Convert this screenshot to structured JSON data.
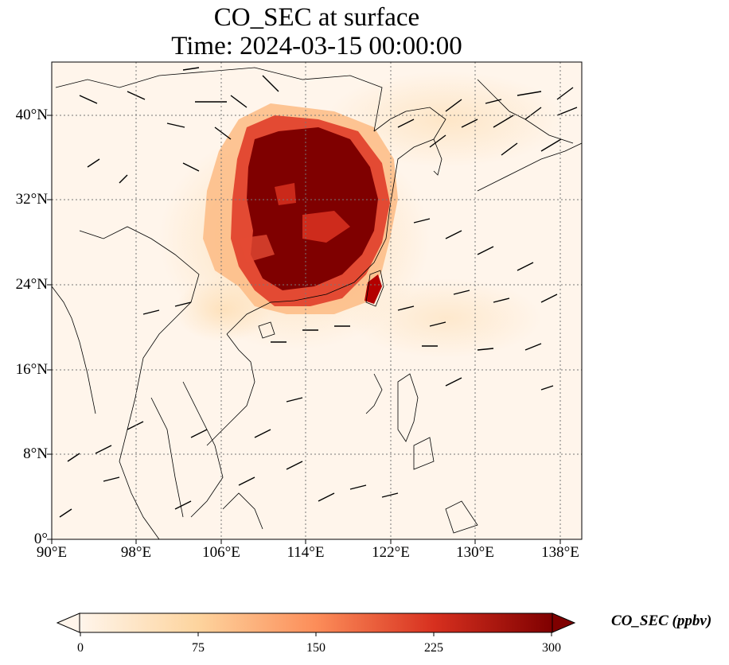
{
  "title_line1": "CO_SEC at surface",
  "title_line2": "Time: 2024-03-15 00:00:00",
  "map": {
    "lon_ticks": [
      "90°E",
      "98°E",
      "106°E",
      "114°E",
      "122°E",
      "130°E",
      "138°E"
    ],
    "lat_ticks": [
      "0°",
      "8°N",
      "16°N",
      "24°N",
      "32°N",
      "40°N"
    ],
    "lon_range": [
      90,
      140
    ],
    "lat_range": [
      0,
      45
    ],
    "grid": "dotted",
    "background_color": "#fff5eb"
  },
  "colorbar": {
    "label": "CO_SEC (ppbv)",
    "ticks": [
      "0",
      "75",
      "150",
      "225",
      "300"
    ],
    "range": [
      0,
      300
    ],
    "extend": "both",
    "colors": [
      "#fff5eb",
      "#fdd49e",
      "#fc8d59",
      "#d7301f",
      "#7f0000"
    ]
  },
  "plume": {
    "center_lon": 114,
    "center_lat": 32,
    "max_value": 300,
    "description_colors": {
      "high": "#7f0000",
      "mid": "#d7301f",
      "low": "#fdd49e"
    }
  }
}
